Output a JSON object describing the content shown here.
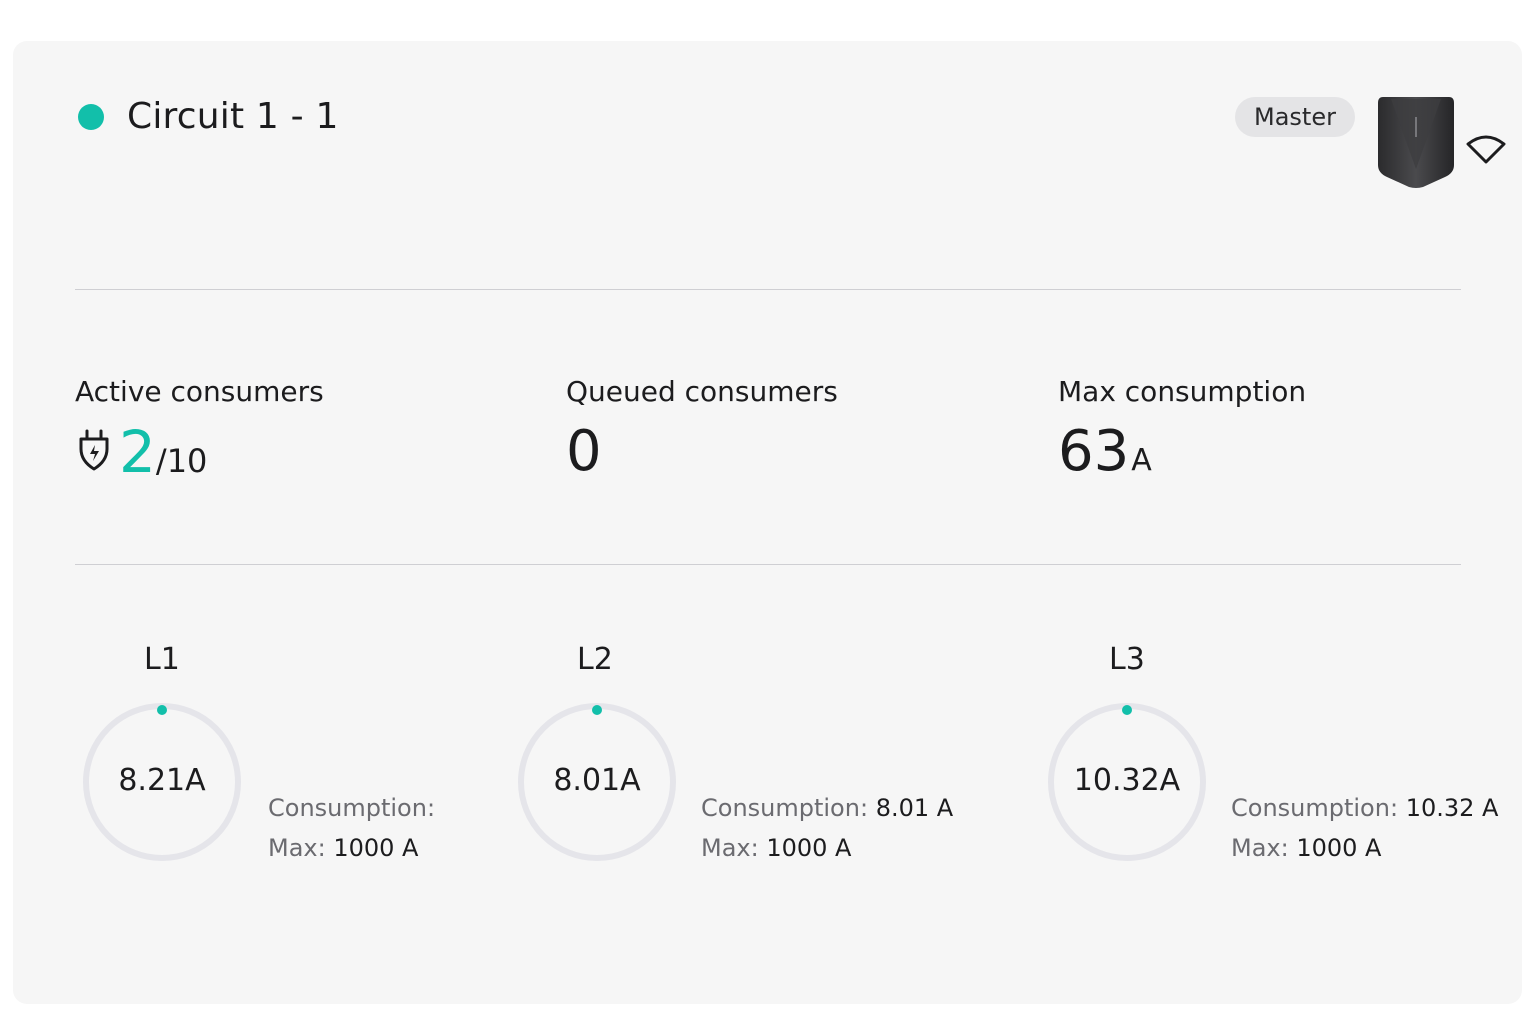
{
  "header": {
    "title": "Circuit 1 - 1",
    "role_badge": "Master",
    "status_color": "#12bfaa",
    "device_icon": "charger-device-image",
    "connection_icon": "wifi-icon"
  },
  "stats": {
    "active": {
      "label": "Active consumers",
      "value": "2",
      "total": "/10",
      "icon": "plug-icon"
    },
    "queued": {
      "label": "Queued consumers",
      "value": "0"
    },
    "max": {
      "label": "Max consumption",
      "value": "63",
      "unit": "A"
    }
  },
  "phases": [
    {
      "label": "L1",
      "reading": "8.21A",
      "consumption_label": "Consumption:",
      "consumption_value": "",
      "max_label": "Max:",
      "max_value": "1000 A"
    },
    {
      "label": "L2",
      "reading": "8.01A",
      "consumption_label": "Consumption:",
      "consumption_value": "8.01 A",
      "max_label": "Max:",
      "max_value": "1000 A"
    },
    {
      "label": "L3",
      "reading": "10.32A",
      "consumption_label": "Consumption:",
      "consumption_value": "10.32 A",
      "max_label": "Max:",
      "max_value": "1000 A"
    }
  ],
  "colors": {
    "accent": "#12bfaa",
    "ring_track": "#e5e5ea",
    "card_bg": "#f6f6f6"
  }
}
